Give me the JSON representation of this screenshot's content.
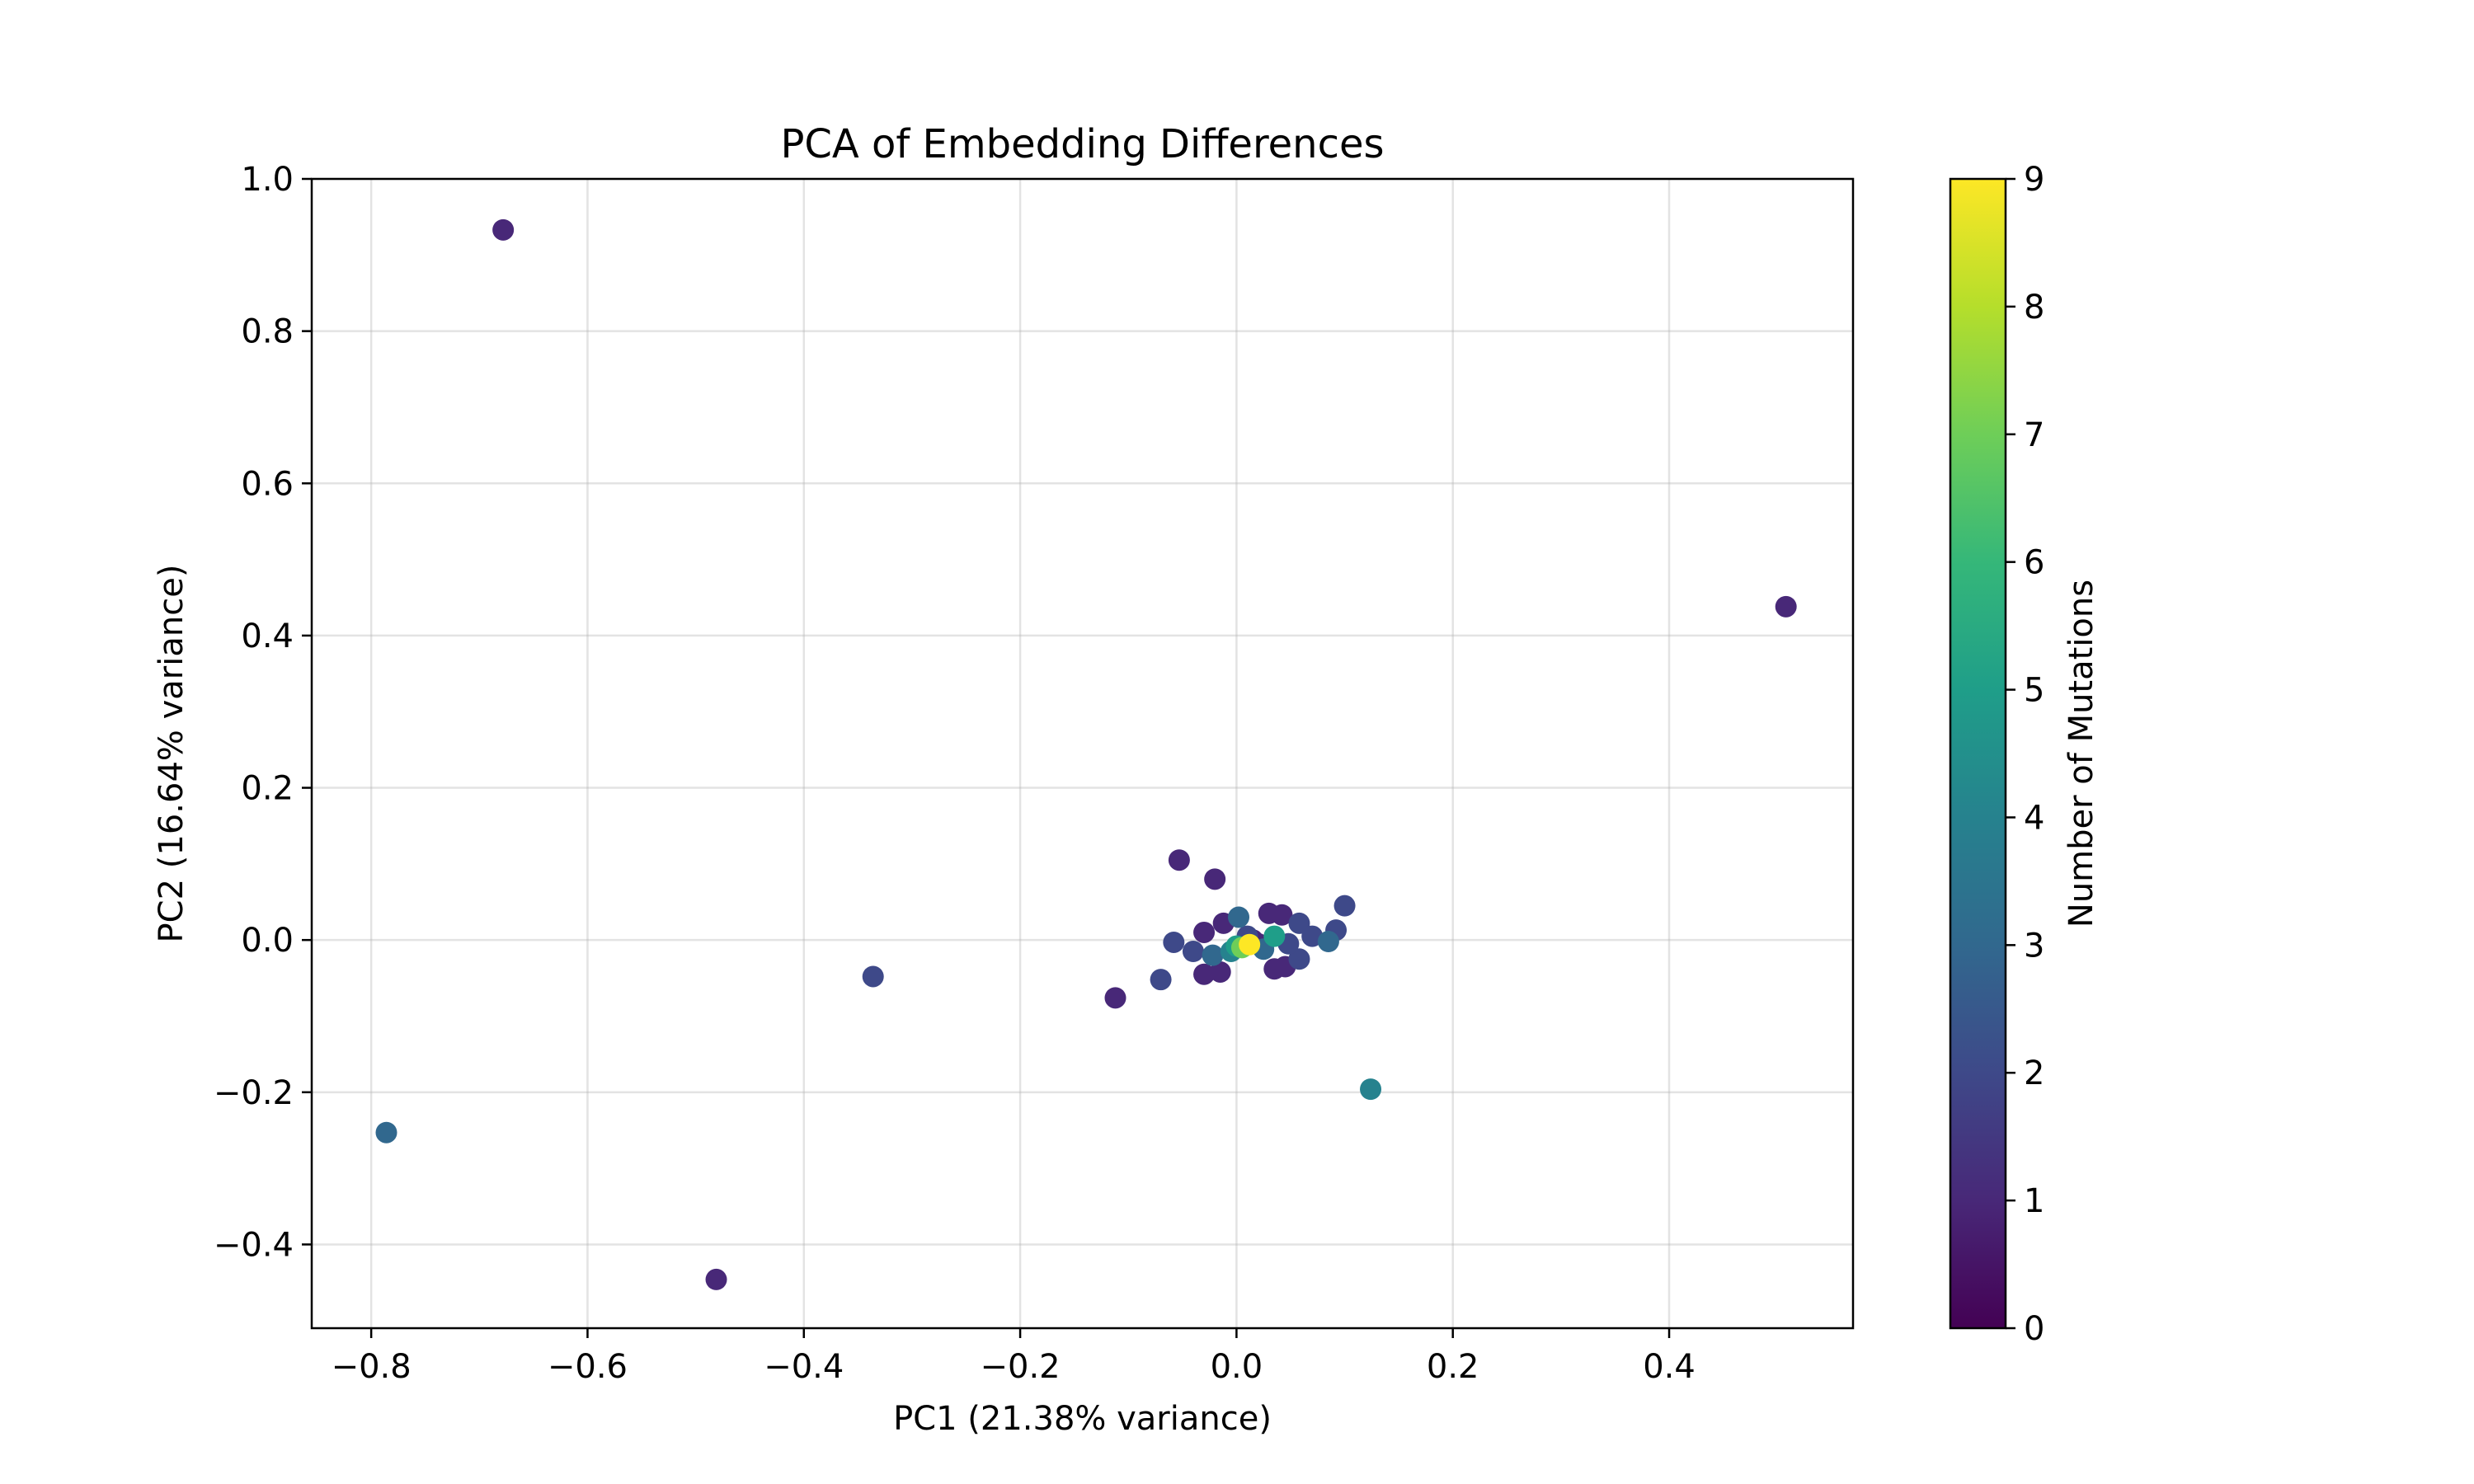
{
  "chart_data": {
    "type": "scatter",
    "title": "PCA of Embedding Differences",
    "xlabel": "PC1 (21.38% variance)",
    "ylabel": "PC2 (16.64% variance)",
    "xlim": [
      -0.855,
      0.57
    ],
    "ylim": [
      -0.51,
      1.0
    ],
    "xticks": [
      -0.8,
      -0.6,
      -0.4,
      -0.2,
      0.0,
      0.2,
      0.4
    ],
    "xtick_labels": [
      "−0.8",
      "−0.6",
      "−0.4",
      "−0.2",
      "0.0",
      "0.2",
      "0.4"
    ],
    "yticks": [
      -0.4,
      -0.2,
      0.0,
      0.2,
      0.4,
      0.6,
      0.8,
      1.0
    ],
    "ytick_labels": [
      "−0.4",
      "−0.2",
      "0.0",
      "0.2",
      "0.4",
      "0.6",
      "0.8",
      "1.0"
    ],
    "grid": true,
    "colormap": "viridis",
    "colorbar": {
      "label": "Number of Mutations",
      "range": [
        0,
        9
      ],
      "ticks": [
        0,
        1,
        2,
        3,
        4,
        5,
        6,
        7,
        8,
        9
      ],
      "tick_labels": [
        "0",
        "1",
        "2",
        "3",
        "4",
        "5",
        "6",
        "7",
        "8",
        "9"
      ]
    },
    "points": [
      {
        "x": -0.678,
        "y": 0.933,
        "c": 1
      },
      {
        "x": 0.508,
        "y": 0.438,
        "c": 1
      },
      {
        "x": -0.336,
        "y": -0.048,
        "c": 2
      },
      {
        "x": -0.786,
        "y": -0.253,
        "c": 3
      },
      {
        "x": -0.481,
        "y": -0.446,
        "c": 1
      },
      {
        "x": 0.124,
        "y": -0.196,
        "c": 4
      },
      {
        "x": -0.112,
        "y": -0.076,
        "c": 1
      },
      {
        "x": -0.07,
        "y": -0.052,
        "c": 2
      },
      {
        "x": -0.053,
        "y": 0.105,
        "c": 1
      },
      {
        "x": -0.02,
        "y": 0.08,
        "c": 1
      },
      {
        "x": 0.1,
        "y": 0.045,
        "c": 2
      },
      {
        "x": 0.092,
        "y": 0.013,
        "c": 2
      },
      {
        "x": 0.085,
        "y": -0.002,
        "c": 3
      },
      {
        "x": 0.058,
        "y": 0.022,
        "c": 2
      },
      {
        "x": 0.03,
        "y": 0.035,
        "c": 1
      },
      {
        "x": 0.042,
        "y": 0.033,
        "c": 1
      },
      {
        "x": 0.002,
        "y": 0.03,
        "c": 3
      },
      {
        "x": -0.012,
        "y": 0.022,
        "c": 1
      },
      {
        "x": -0.03,
        "y": 0.01,
        "c": 1
      },
      {
        "x": -0.058,
        "y": -0.003,
        "c": 2
      },
      {
        "x": -0.04,
        "y": -0.015,
        "c": 2
      },
      {
        "x": -0.03,
        "y": -0.045,
        "c": 1
      },
      {
        "x": -0.015,
        "y": -0.042,
        "c": 1
      },
      {
        "x": 0.035,
        "y": -0.038,
        "c": 1
      },
      {
        "x": 0.045,
        "y": -0.035,
        "c": 1
      },
      {
        "x": 0.058,
        "y": -0.025,
        "c": 2
      },
      {
        "x": 0.02,
        "y": -0.005,
        "c": 1
      },
      {
        "x": 0.01,
        "y": 0.005,
        "c": 2
      },
      {
        "x": 0.035,
        "y": 0.005,
        "c": 5
      },
      {
        "x": 0.025,
        "y": -0.012,
        "c": 3
      },
      {
        "x": -0.005,
        "y": -0.015,
        "c": 4
      },
      {
        "x": 0.0,
        "y": -0.008,
        "c": 5
      },
      {
        "x": 0.005,
        "y": -0.01,
        "c": 7
      },
      {
        "x": 0.012,
        "y": -0.006,
        "c": 9
      },
      {
        "x": 0.07,
        "y": 0.005,
        "c": 2
      },
      {
        "x": -0.022,
        "y": -0.02,
        "c": 3
      },
      {
        "x": 0.015,
        "y": 0.0,
        "c": 1
      },
      {
        "x": 0.048,
        "y": -0.005,
        "c": 2
      }
    ]
  }
}
